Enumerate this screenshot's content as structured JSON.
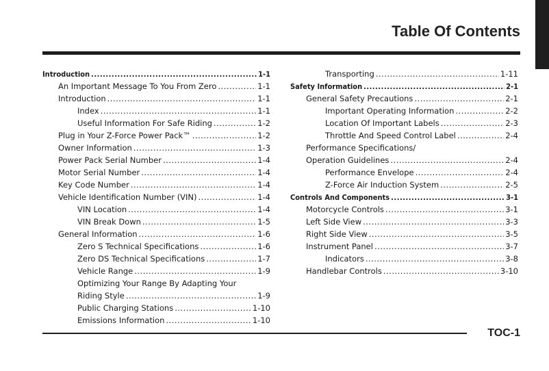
{
  "header": {
    "title": "Table Of Contents"
  },
  "footer": {
    "page_number": "TOC-1"
  },
  "left_column": [
    {
      "text": "Introduction",
      "page": "1-1",
      "level": 0,
      "bold": true
    },
    {
      "text": "An Important Message To You From Zero",
      "page": "1-1",
      "level": 1
    },
    {
      "text": "Introduction",
      "page": "1-1",
      "level": 1
    },
    {
      "text": "Index",
      "page": "1-1",
      "level": 2
    },
    {
      "text": "Useful Information For Safe Riding",
      "page": "1-2",
      "level": 2
    },
    {
      "text": "Plug in Your Z-Force Power Pack™",
      "page": "1-2",
      "level": 1
    },
    {
      "text": "Owner Information",
      "page": "1-3",
      "level": 1
    },
    {
      "text": "Power Pack Serial Number",
      "page": "1-4",
      "level": 1
    },
    {
      "text": "Motor Serial Number",
      "page": "1-4",
      "level": 1
    },
    {
      "text": "Key Code Number",
      "page": "1-4",
      "level": 1
    },
    {
      "text": "Vehicle Identification Number (VIN)",
      "page": "1-4",
      "level": 1
    },
    {
      "text": "VIN Location",
      "page": "1-4",
      "level": 2
    },
    {
      "text": "VIN Break Down",
      "page": "1-5",
      "level": 2
    },
    {
      "text": "General Information",
      "page": "1-6",
      "level": 1
    },
    {
      "text": "Zero S Technical Specifications",
      "page": "1-6",
      "level": 2
    },
    {
      "text": "Zero DS Technical Specifications",
      "page": "1-7",
      "level": 2
    },
    {
      "text": "Vehicle Range",
      "page": "1-9",
      "level": 2
    },
    {
      "text": "Optimizing Your Range By Adapting Your",
      "page": "",
      "level": 2
    },
    {
      "text": "Riding Style",
      "page": "1-9",
      "level": 2
    },
    {
      "text": "Public Charging Stations",
      "page": "1-10",
      "level": 2
    },
    {
      "text": "Emissions Information",
      "page": "1-10",
      "level": 2
    }
  ],
  "right_column": [
    {
      "text": "Transporting",
      "page": "1-11",
      "level": 2
    },
    {
      "text": "Safety Information",
      "page": "2-1",
      "level": 0,
      "bold": true
    },
    {
      "text": "General Safety Precautions",
      "page": "2-1",
      "level": 1
    },
    {
      "text": "Important Operating Information",
      "page": "2-2",
      "level": 2
    },
    {
      "text": "Location Of Important Labels",
      "page": "2-3",
      "level": 2
    },
    {
      "text": "Throttle And Speed Control Label",
      "page": "2-4",
      "level": 2
    },
    {
      "text": "Performance Specifications/",
      "page": "",
      "level": 1
    },
    {
      "text": "Operation Guidelines",
      "page": "2-4",
      "level": 1
    },
    {
      "text": "Performance Envelope",
      "page": "2-4",
      "level": 2
    },
    {
      "text": "Z-Force Air Induction System",
      "page": "2-5",
      "level": 2
    },
    {
      "text": "Controls And Components",
      "page": "3-1",
      "level": 0,
      "bold": true
    },
    {
      "text": "Motorcycle Controls",
      "page": "3-1",
      "level": 1
    },
    {
      "text": "Left Side View",
      "page": "3-3",
      "level": 1
    },
    {
      "text": "Right Side View",
      "page": "3-5",
      "level": 1
    },
    {
      "text": "Instrument Panel",
      "page": "3-7",
      "level": 1
    },
    {
      "text": "Indicators",
      "page": "3-8",
      "level": 2
    },
    {
      "text": "Handlebar Controls",
      "page": "3-10",
      "level": 1
    }
  ]
}
